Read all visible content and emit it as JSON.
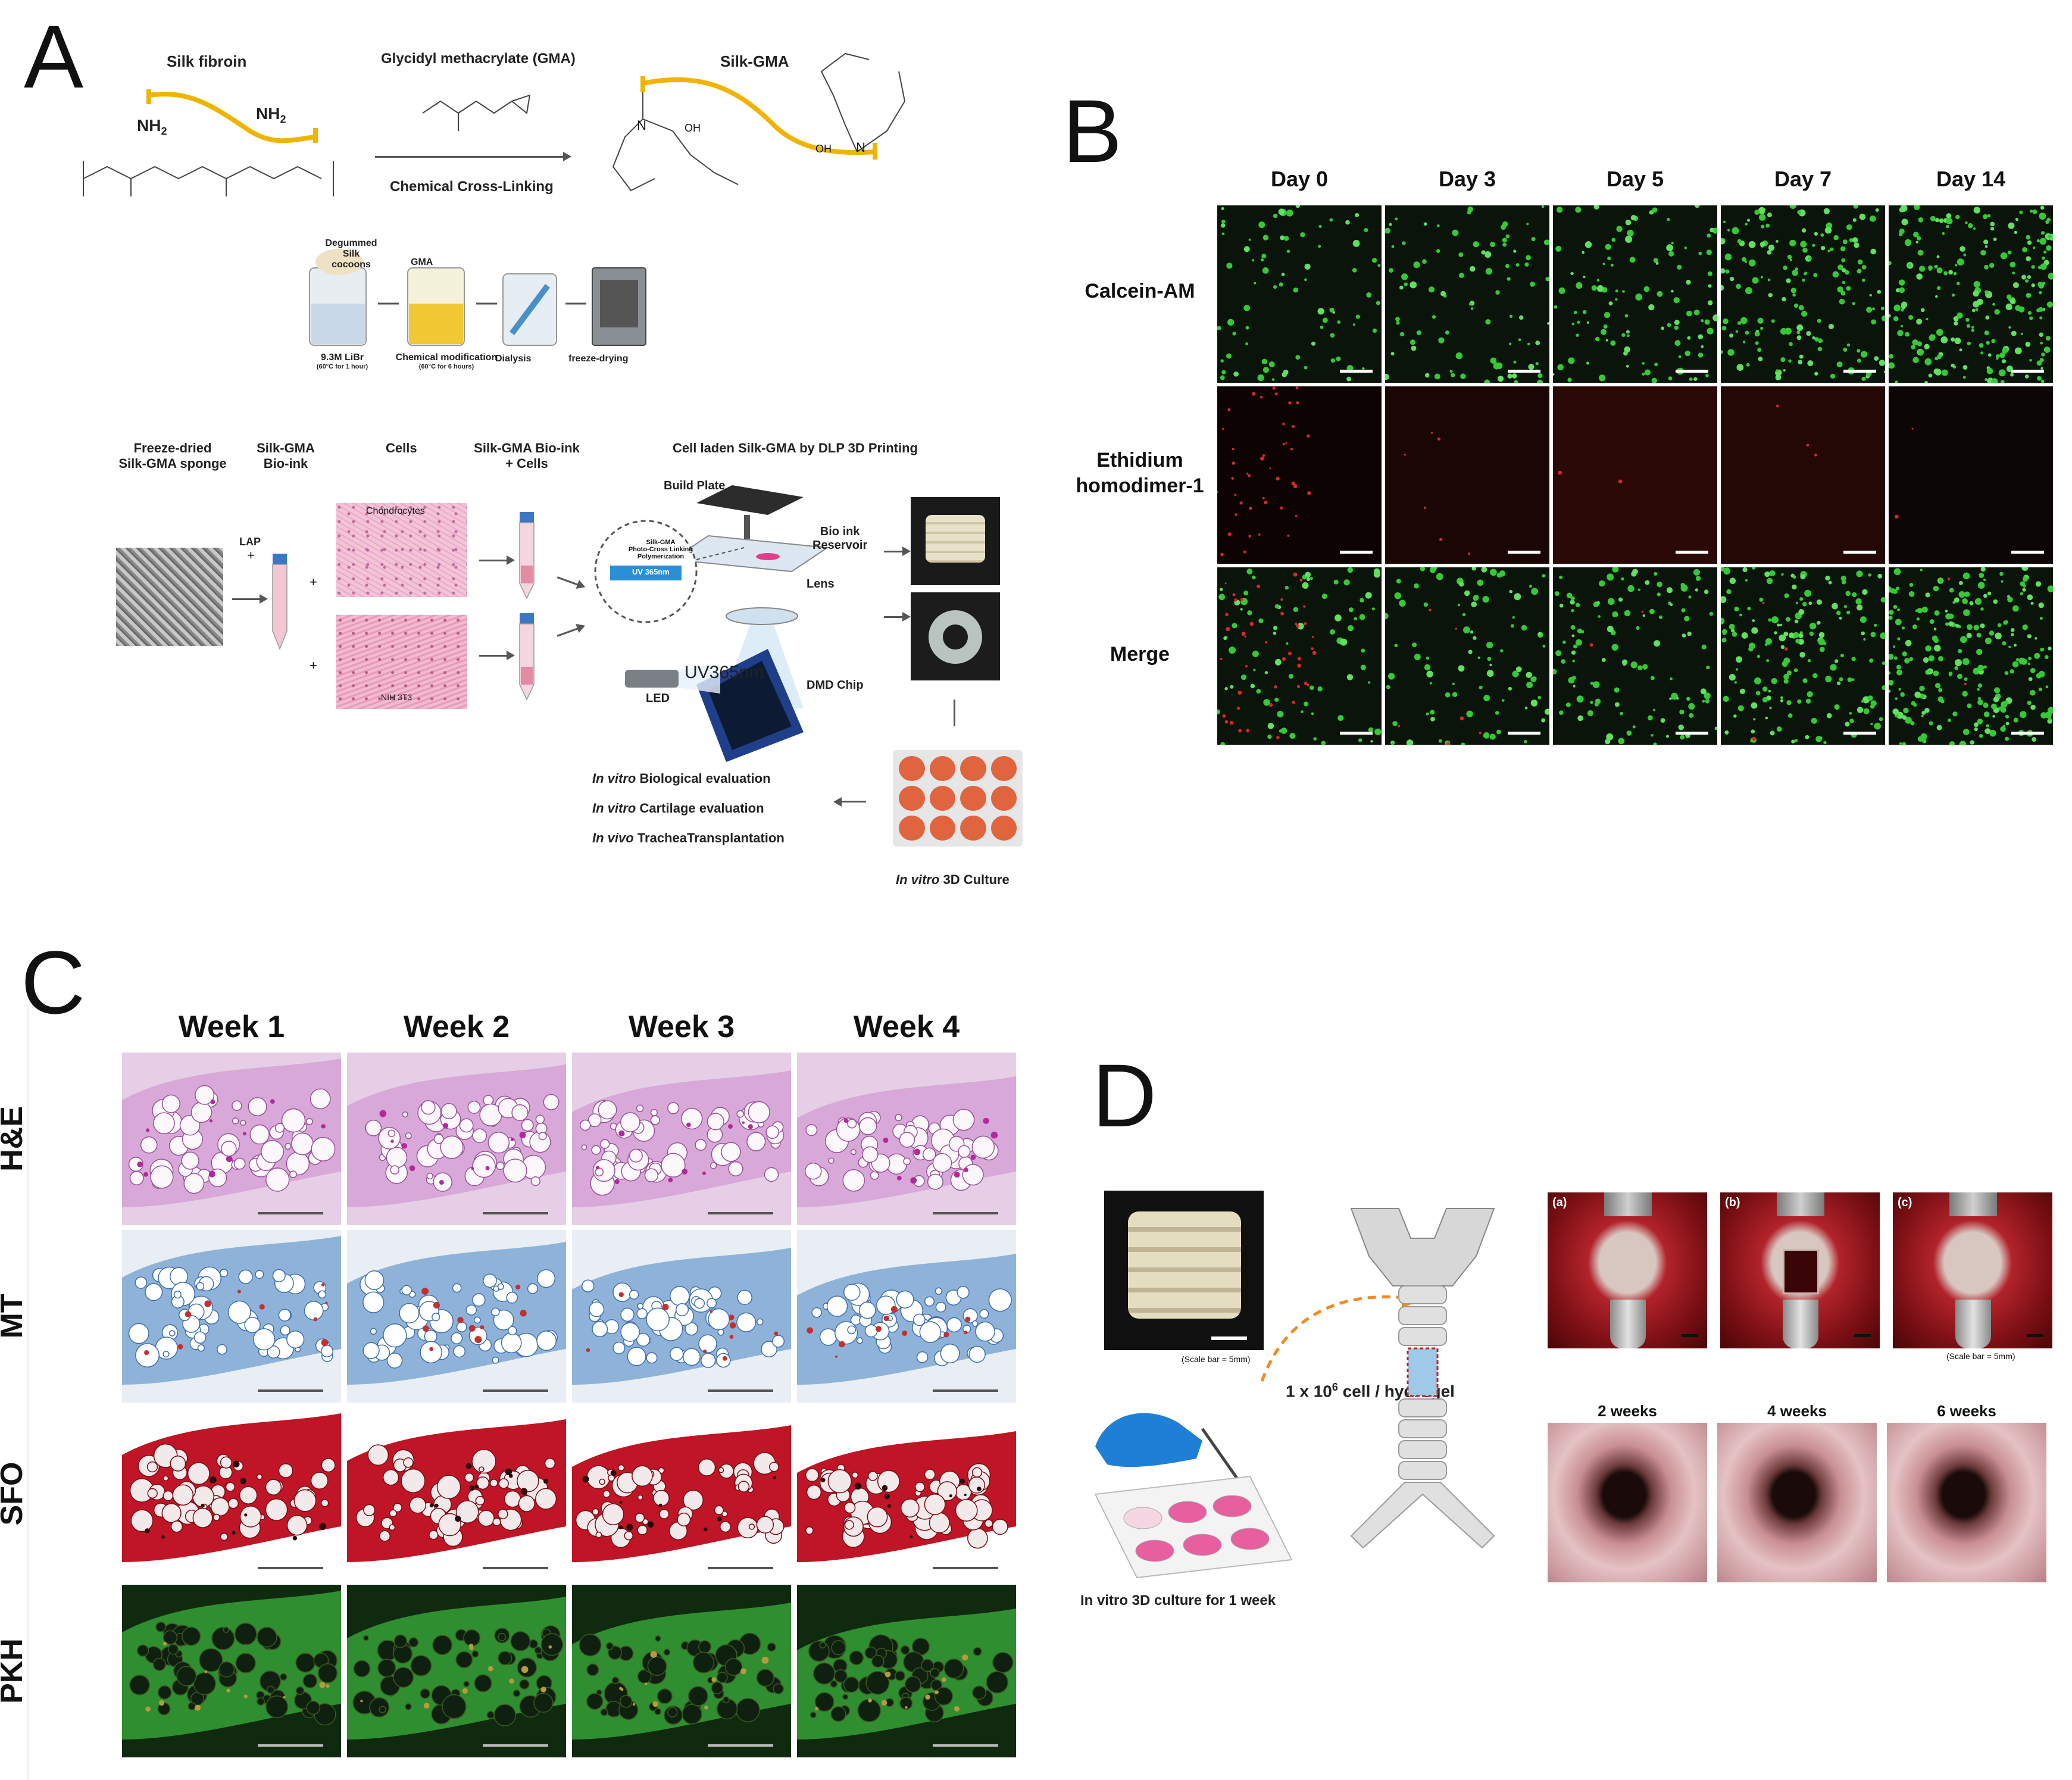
{
  "panels": {
    "A": {
      "letter": "A",
      "top": {
        "silk_fibroin": "Silk fibroin",
        "nh2": "NH",
        "nh2_sub": "2",
        "gma": "Glycidyl methacrylate (GMA)",
        "silk_gma": "Silk-GMA",
        "crosslinking": "Chemical Cross-Linking",
        "degummed": "Degummed",
        "silk_cocoons": "Silk cocoons",
        "gma_small": "GMA",
        "libr": "9.3M LiBr",
        "libr_sub": "(60°C for 1 hour)",
        "chem_mod": "Chemical modification",
        "chem_mod_sub": "(60°C for 6 hours)",
        "dialysis": "Dialysis",
        "freeze_drying": "freeze-drying",
        "oh": "OH",
        "n": "N",
        "o": "O"
      },
      "bottom": {
        "freeze_dried": "Freeze-dried",
        "sponge": "Silk-GMA  sponge",
        "silk_gma": "Silk-GMA",
        "bio_ink": "Bio-ink",
        "cells": "Cells",
        "silk_gma_bio_ink": "Silk-GMA Bio-ink",
        "plus_cells": "+ Cells",
        "dlp_title": "Cell laden Silk-GMA by DLP 3D Printing",
        "build_plate": "Build Plate",
        "bio_ink_res": "Bio ink",
        "reservoir": "Reservoir",
        "lens": "Lens",
        "uv365": "UV365nm",
        "led": "LED",
        "dmd": "DMD Chip",
        "lap": "LAP",
        "plus": "+",
        "chondrocytes": "Chondrocytes",
        "nih3t3": "NIH 3T3",
        "circle_line1": "Silk-GMA",
        "circle_line2": "Photo-Cross Linking",
        "circle_line3": "Polymerization",
        "circle_uv": "UV 365nm",
        "eval_1_it": "In vitro",
        "eval_1": "Biological evaluation",
        "eval_2_it": "In vitro",
        "eval_2": "Cartilage evaluation",
        "eval_3_it": "In vivo",
        "eval_3": "TracheaTransplantation",
        "culture_it": "In vitro",
        "culture": "3D Culture"
      }
    },
    "B": {
      "letter": "B",
      "columns": [
        "Day 0",
        "Day 3",
        "Day 5",
        "Day 7",
        "Day 14"
      ],
      "rows": [
        "Calcein-AM",
        "Ethidium homodimer-1",
        "Merge"
      ],
      "row2_line1": "Ethidium",
      "row2_line2": "homodimer-1"
    },
    "C": {
      "letter": "C",
      "columns": [
        "Week 1",
        "Week 2",
        "Week 3",
        "Week 4"
      ],
      "rows": [
        "H&E",
        "MT",
        "SFO",
        "PKH"
      ]
    },
    "D": {
      "letter": "D",
      "scale_bar_note": "(Scale bar = 5mm)",
      "cell_density_prefix": "1 x 10",
      "cell_density_sup": "6",
      "cell_density_suffix": " cell / hydrogel",
      "culture_caption": "In vitro 3D culture for 1 week",
      "surgery_labels": [
        "(a)",
        "(b)",
        "(c)"
      ],
      "surgery_scale_note": "(Scale bar = 5mm)",
      "endoscopy_labels": [
        "2 weeks",
        "4 weeks",
        "6 weeks"
      ]
    }
  },
  "colors": {
    "fluor_green": "#2fc22f",
    "fluor_dark": "#0a0a0a",
    "eth_red": "#1a0706",
    "he_pink": "#d9a8d8",
    "mt_blue": "#6fa3d2",
    "sfo_red": "#c11226",
    "pkh_green": "#2f9a2f",
    "silk_orange": "#f0b400"
  }
}
